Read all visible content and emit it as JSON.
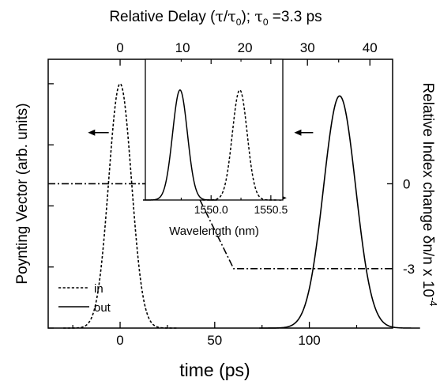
{
  "chart_data": [
    {
      "type": "line",
      "xlabel": "time (ps)",
      "x_ticks": [
        0,
        50,
        100
      ],
      "xlim": [
        -38,
        144
      ],
      "ylabel": "Poynting Vector (arb. units)",
      "ylim": [
        0,
        1.1
      ],
      "top_axis": {
        "label_parts": [
          "Relative Delay (",
          "τ",
          "/",
          "τ",
          "0",
          "); ",
          "τ",
          "0",
          " =3.3 ps"
        ],
        "ticks": [
          0,
          10,
          20,
          30,
          40
        ],
        "tau0_ps": 3.3
      },
      "right_axis": {
        "label": "Relative Index change δn/n x 10",
        "label_exponent": "-4",
        "ticks": [
          0,
          -3
        ],
        "ylim": [
          -5.1,
          4.4
        ]
      },
      "series": [
        {
          "name": "in",
          "style": "dashed",
          "axis": "left",
          "center": 0,
          "sigma": 6.0,
          "peak": 1.0
        },
        {
          "name": "out",
          "style": "solid",
          "axis": "left",
          "center": 116,
          "sigma": 8.5,
          "peak": 0.95
        },
        {
          "style": "dashdot",
          "axis": "right",
          "x": [
            -38,
            38,
            60,
            144
          ],
          "y": [
            0,
            0,
            -3,
            -3
          ]
        }
      ],
      "arrows": [
        {
          "x": [
            -6,
            -17
          ],
          "y": 0.8
        },
        {
          "x": [
            102,
            92
          ],
          "y": 0.8
        },
        {
          "x": [
            78,
            88
          ],
          "right_y": -0.5
        }
      ]
    },
    {
      "type": "line",
      "inset": true,
      "xlabel": "Wavelength (nm)",
      "x_tick_labels": [
        "1550.0",
        "1550.5"
      ],
      "x_ticks": [
        1550.0,
        1550.5
      ],
      "xlim": [
        1549.45,
        1550.6
      ],
      "ylim": [
        0,
        1.1
      ],
      "series": [
        {
          "style": "solid",
          "center": 1549.74,
          "sigma": 0.062,
          "peak": 0.86
        },
        {
          "style": "dashed",
          "center": 1550.24,
          "sigma": 0.062,
          "peak": 0.86
        }
      ]
    }
  ]
}
